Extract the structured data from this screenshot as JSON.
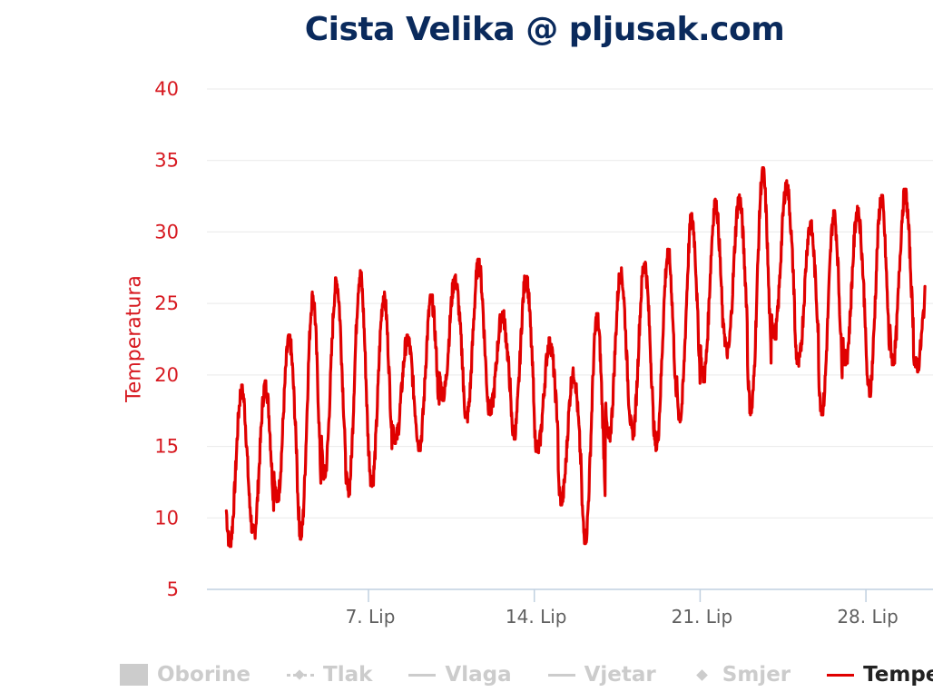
{
  "chart_data": {
    "type": "line",
    "title": "Cista Velika @ pljusak.com",
    "ylabel": "Temperatura",
    "xlabel": "",
    "ylim": [
      5,
      40
    ],
    "yticks": [
      5,
      10,
      15,
      20,
      25,
      30,
      35,
      40
    ],
    "xticks": [
      {
        "label": "7. Lip",
        "day": 7
      },
      {
        "label": "14. Lip",
        "day": 14
      },
      {
        "label": "21. Lip",
        "day": 21
      },
      {
        "label": "28. Lip",
        "day": 28
      }
    ],
    "xrange_days": [
      1.0,
      30.5
    ],
    "grid": true,
    "legend_position": "bottom",
    "series": [
      {
        "name": "Temperatura",
        "color": "#e00000",
        "daily_min_max": [
          [
            8.3,
            19.0
          ],
          [
            8.8,
            19.3
          ],
          [
            11.3,
            22.5
          ],
          [
            8.8,
            25.5
          ],
          [
            13.0,
            26.5
          ],
          [
            11.8,
            27.0
          ],
          [
            12.5,
            25.5
          ],
          [
            15.5,
            22.5
          ],
          [
            15.0,
            25.3
          ],
          [
            18.5,
            26.7
          ],
          [
            17.0,
            27.8
          ],
          [
            17.5,
            24.2
          ],
          [
            15.8,
            26.8
          ],
          [
            14.8,
            22.3
          ],
          [
            11.2,
            20.2
          ],
          [
            8.5,
            24.0
          ],
          [
            15.5,
            27.2
          ],
          [
            15.8,
            27.8
          ],
          [
            15.0,
            28.5
          ],
          [
            17.0,
            31.0
          ],
          [
            19.8,
            32.0
          ],
          [
            21.5,
            32.3
          ],
          [
            17.5,
            34.2
          ],
          [
            22.8,
            33.3
          ],
          [
            20.8,
            30.5
          ],
          [
            17.5,
            31.2
          ],
          [
            21.0,
            31.5
          ],
          [
            18.8,
            32.3
          ],
          [
            21.0,
            32.7
          ],
          [
            20.5,
            27.0
          ]
        ]
      }
    ]
  },
  "legend": {
    "items": [
      {
        "label": "Oborine"
      },
      {
        "label": "Tlak"
      },
      {
        "label": "Vlaga"
      },
      {
        "label": "Vjetar"
      },
      {
        "label": "Smjer"
      },
      {
        "label": "Temperatura"
      }
    ]
  }
}
